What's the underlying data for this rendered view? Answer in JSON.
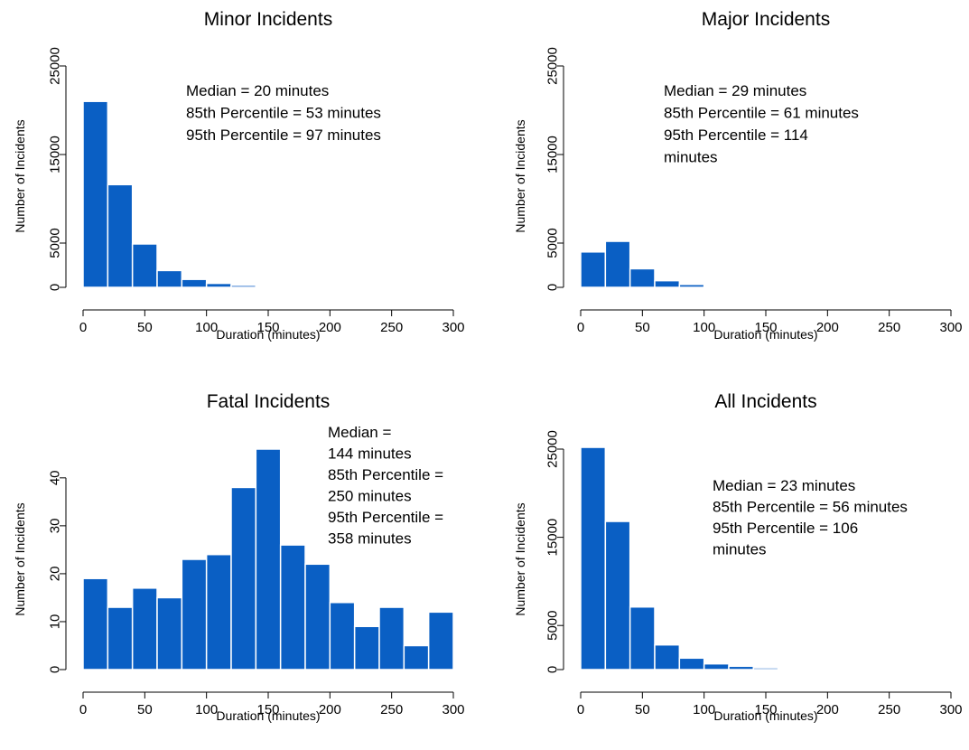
{
  "chart_data": [
    {
      "type": "bar",
      "title": "Minor Incidents",
      "xlabel": "Duration (minutes)",
      "ylabel": "Number of Incidents",
      "xlim": [
        0,
        300
      ],
      "ylim": [
        0,
        25000
      ],
      "xticks": [
        "0",
        "50",
        "100",
        "150",
        "200",
        "250",
        "300"
      ],
      "yticks": [
        "0",
        "5000",
        "15000",
        "25000"
      ],
      "bin_width": 20,
      "bin_starts": [
        0,
        20,
        40,
        60,
        80,
        100,
        120,
        140,
        160,
        180,
        200,
        220,
        240
      ],
      "values": [
        21000,
        11600,
        4900,
        1900,
        900,
        450,
        230,
        120,
        70,
        50,
        35,
        25,
        15
      ],
      "annotation": [
        "Median = 20 minutes",
        "85th Percentile = 53 minutes",
        "95th Percentile = 97 minutes"
      ],
      "color": "#0a5fc4"
    },
    {
      "type": "bar",
      "title": "Major Incidents",
      "xlabel": "Duration (minutes)",
      "ylabel": "Number of Incidents",
      "xlim": [
        0,
        300
      ],
      "ylim": [
        0,
        25000
      ],
      "xticks": [
        "0",
        "50",
        "100",
        "150",
        "200",
        "250",
        "300"
      ],
      "yticks": [
        "0",
        "5000",
        "15000",
        "25000"
      ],
      "bin_width": 20,
      "bin_starts": [
        0,
        20,
        40,
        60,
        80,
        100,
        120,
        140,
        160
      ],
      "values": [
        4000,
        5200,
        2100,
        750,
        330,
        140,
        70,
        40,
        20
      ],
      "annotation": [
        "Median = 29 minutes",
        "85th Percentile = 61 minutes",
        "95th Percentile = 114",
        "minutes"
      ],
      "color": "#0a5fc4"
    },
    {
      "type": "bar",
      "title": "Fatal Incidents",
      "xlabel": "Duration (minutes)",
      "ylabel": "Number of Incidents",
      "xlim": [
        0,
        300
      ],
      "ylim": [
        0,
        46
      ],
      "xticks": [
        "0",
        "50",
        "100",
        "150",
        "200",
        "250",
        "300"
      ],
      "yticks": [
        "0",
        "10",
        "20",
        "30",
        "40"
      ],
      "bin_width": 20,
      "bin_starts": [
        0,
        20,
        40,
        60,
        80,
        100,
        120,
        140,
        160,
        180,
        200,
        220,
        240,
        260,
        280
      ],
      "values": [
        19,
        13,
        17,
        15,
        23,
        24,
        38,
        46,
        26,
        22,
        14,
        9,
        13,
        5,
        12
      ],
      "annotation": [
        "Median =",
        "144 minutes",
        "85th Percentile =",
        "250 minutes",
        "95th Percentile =",
        "358 minutes"
      ],
      "color": "#0a5fc4"
    },
    {
      "type": "bar",
      "title": "All Incidents",
      "xlabel": "Duration (minutes)",
      "ylabel": "Number of Incidents",
      "xlim": [
        0,
        300
      ],
      "ylim": [
        0,
        25000
      ],
      "xticks": [
        "0",
        "50",
        "100",
        "150",
        "200",
        "250",
        "300"
      ],
      "yticks": [
        "0",
        "5000",
        "15000",
        "25000"
      ],
      "bin_width": 20,
      "bin_starts": [
        0,
        20,
        40,
        60,
        80,
        100,
        120,
        140,
        160,
        180,
        200,
        220,
        240,
        260
      ],
      "values": [
        25200,
        16800,
        7100,
        2800,
        1300,
        650,
        380,
        200,
        110,
        70,
        45,
        30,
        120,
        20
      ],
      "annotation": [
        "Median = 23 minutes",
        "85th Percentile = 56 minutes",
        "95th Percentile = 106",
        "minutes"
      ],
      "color": "#0a5fc4"
    }
  ]
}
